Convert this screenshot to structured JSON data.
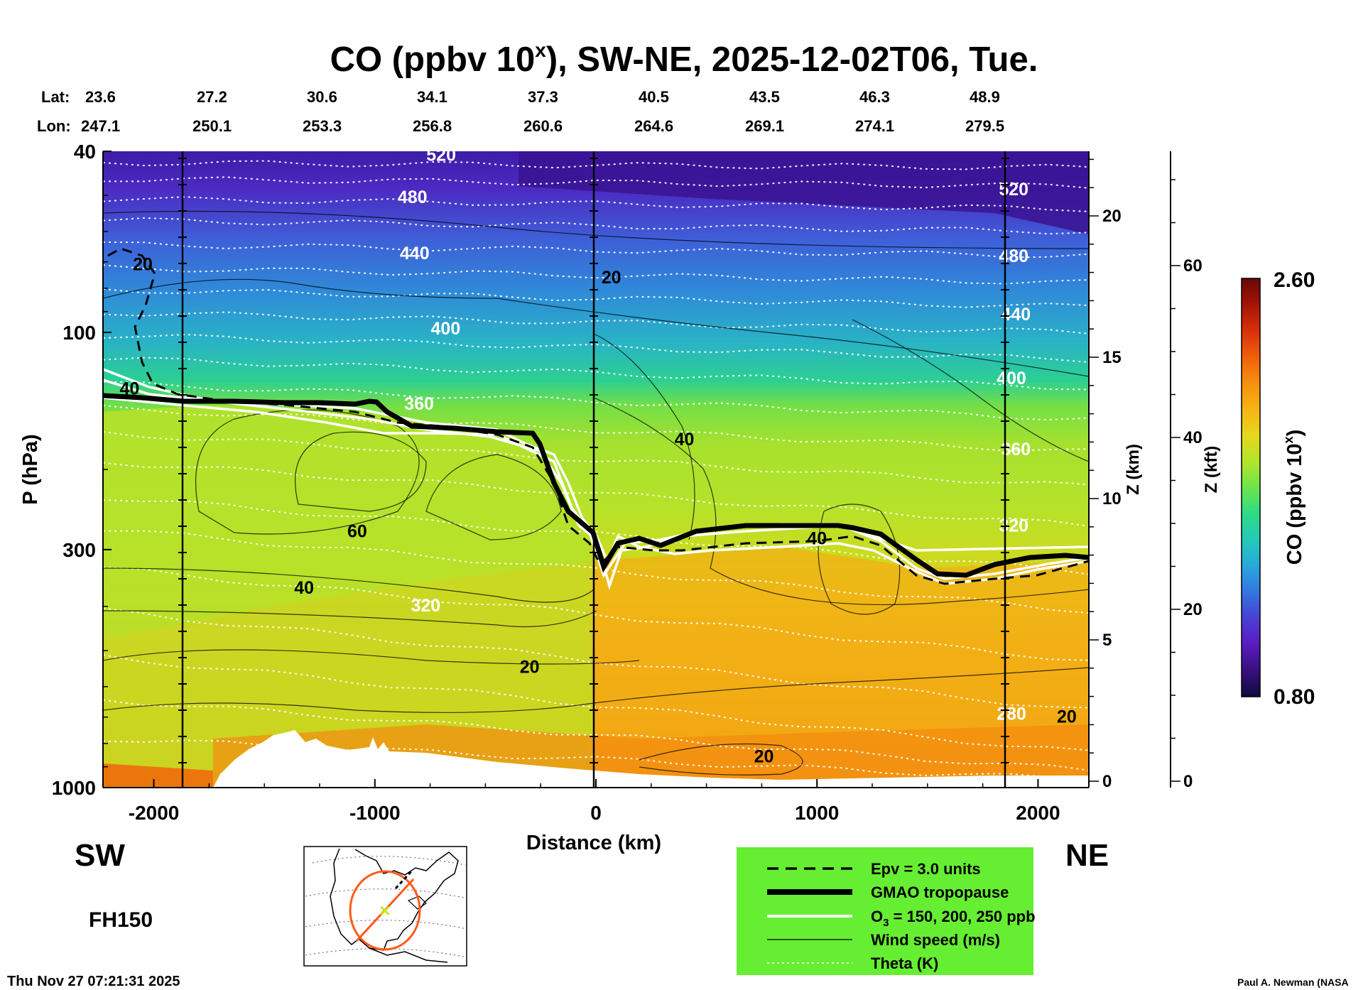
{
  "colors": {
    "legend_bg": "#66ee33",
    "colormap": [
      "#0d0a40",
      "#3a107e",
      "#5a1bbf",
      "#4a3fd6",
      "#3376e0",
      "#2aa7dc",
      "#24c9b8",
      "#2fdc84",
      "#6ce54b",
      "#b4e52b",
      "#e6d81c",
      "#f6b413",
      "#f7900e",
      "#ef5f0b",
      "#d8300a",
      "#a41407",
      "#6a0808"
    ]
  },
  "title_main": "CO (ppbv 10",
  "title_sup": "x",
  "title_rest": "), SW-NE, 2025-12-02T06, Tue.",
  "lat_label": "Lat:",
  "lon_label": "Lon:",
  "lats": [
    "23.6",
    "27.2",
    "30.6",
    "34.1",
    "37.3",
    "40.5",
    "43.5",
    "46.3",
    "48.9"
  ],
  "lons": [
    "247.1",
    "250.1",
    "253.3",
    "256.8",
    "260.6",
    "264.6",
    "269.1",
    "274.1",
    "279.5"
  ],
  "chart_data": {
    "type": "heatmap",
    "title": "CO (ppbv 10^x), SW-NE, 2025-12-02T06, Tue.",
    "xlabel": "Distance (km)",
    "ylabel": "P (hPa)",
    "xlim": [
      -2230,
      2230
    ],
    "ylim": [
      1000,
      40
    ],
    "y_scale": "log",
    "x_ticks": [
      -2000,
      -1000,
      0,
      1000,
      2000
    ],
    "y_ticks": [
      1000,
      300,
      100,
      40
    ],
    "right_axis_z_km": {
      "label": "Z (km)",
      "ticks": [
        0,
        5,
        10,
        15,
        20
      ]
    },
    "right_axis_z_kft": {
      "label": "Z (kft)",
      "ticks": [
        0,
        20,
        40,
        60
      ]
    },
    "colorbar": {
      "label": "CO (ppbv 10",
      "label_sup": "x",
      "label_close": ")",
      "min": 0.8,
      "max": 2.6,
      "min_label": "0.80",
      "max_label": "2.60"
    },
    "theta_labels": [
      {
        "text": "520",
        "x": -700,
        "p": 42
      },
      {
        "text": "480",
        "x": -830,
        "p": 52
      },
      {
        "text": "440",
        "x": -820,
        "p": 69
      },
      {
        "text": "400",
        "x": -680,
        "p": 101
      },
      {
        "text": "360",
        "x": -800,
        "p": 148
      },
      {
        "text": "320",
        "x": -770,
        "p": 410
      },
      {
        "text": "520",
        "x": 1890,
        "p": 50
      },
      {
        "text": "480",
        "x": 1890,
        "p": 70
      },
      {
        "text": "440",
        "x": 1900,
        "p": 94
      },
      {
        "text": "400",
        "x": 1880,
        "p": 130
      },
      {
        "text": "360",
        "x": 1900,
        "p": 186
      },
      {
        "text": "320",
        "x": 1890,
        "p": 274
      },
      {
        "text": "280",
        "x": 1880,
        "p": 710
      }
    ],
    "wind_labels": [
      {
        "text": "20",
        "x": -2050,
        "p": 73
      },
      {
        "text": "40",
        "x": -2110,
        "p": 137
      },
      {
        "text": "20",
        "x": 70,
        "p": 78
      },
      {
        "text": "40",
        "x": 400,
        "p": 177
      },
      {
        "text": "60",
        "x": -1080,
        "p": 282
      },
      {
        "text": "40",
        "x": -1320,
        "p": 375
      },
      {
        "text": "40",
        "x": 1000,
        "p": 292
      },
      {
        "text": "20",
        "x": -300,
        "p": 560
      },
      {
        "text": "20",
        "x": 760,
        "p": 880
      },
      {
        "text": "20",
        "x": 2130,
        "p": 720
      }
    ]
  },
  "sw_label": "SW",
  "ne_label": "NE",
  "fh_label": "FH150",
  "timestamp": "Thu Nov 27 07:21:31 2025",
  "author": "Paul A. Newman (NASA",
  "legend": {
    "items": [
      {
        "label": "Epv = 3.0 units",
        "style": "dashed"
      },
      {
        "label": "GMAO tropopause",
        "style": "thick"
      },
      {
        "label": "O",
        "sub": "3",
        "label_rest": " = 150, 200, 250 ppb",
        "style": "white"
      },
      {
        "label": "Wind speed (m/s)",
        "style": "thin"
      },
      {
        "label": "Theta (K)",
        "style": "dotted"
      }
    ]
  }
}
